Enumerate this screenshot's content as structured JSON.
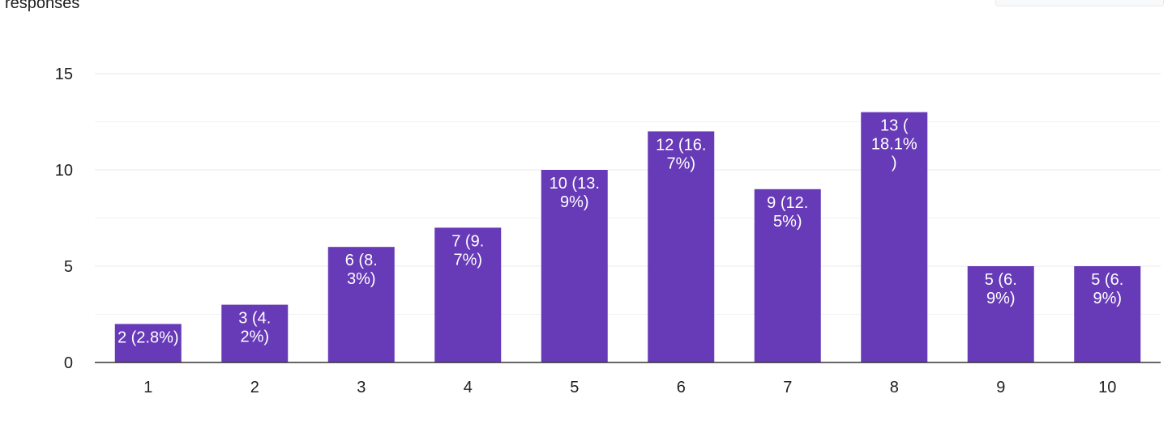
{
  "header": {
    "responses_label": "responses"
  },
  "chart_data": {
    "type": "bar",
    "categories": [
      "1",
      "2",
      "3",
      "4",
      "5",
      "6",
      "7",
      "8",
      "9",
      "10"
    ],
    "values": [
      2,
      3,
      6,
      7,
      10,
      12,
      9,
      13,
      5,
      5
    ],
    "data_labels": [
      [
        "2 (2.8%)"
      ],
      [
        "3 (4.",
        "2%)"
      ],
      [
        "6 (8.",
        "3%)"
      ],
      [
        "7 (9.",
        "7%)"
      ],
      [
        "10 (13.",
        "9%)"
      ],
      [
        "12 (16.",
        "7%)"
      ],
      [
        "9 (12.",
        "5%)"
      ],
      [
        "13 (",
        "18.1%",
        ")"
      ],
      [
        "5 (6.",
        "9%)"
      ],
      [
        "5 (6.",
        "9%)"
      ]
    ],
    "yticks": [
      "0",
      "5",
      "10",
      "15"
    ],
    "ylim": [
      0,
      15
    ],
    "grid": true,
    "bar_color": "#673ab7",
    "grid_color": "#e8eaed",
    "axis_color": "#333333"
  }
}
